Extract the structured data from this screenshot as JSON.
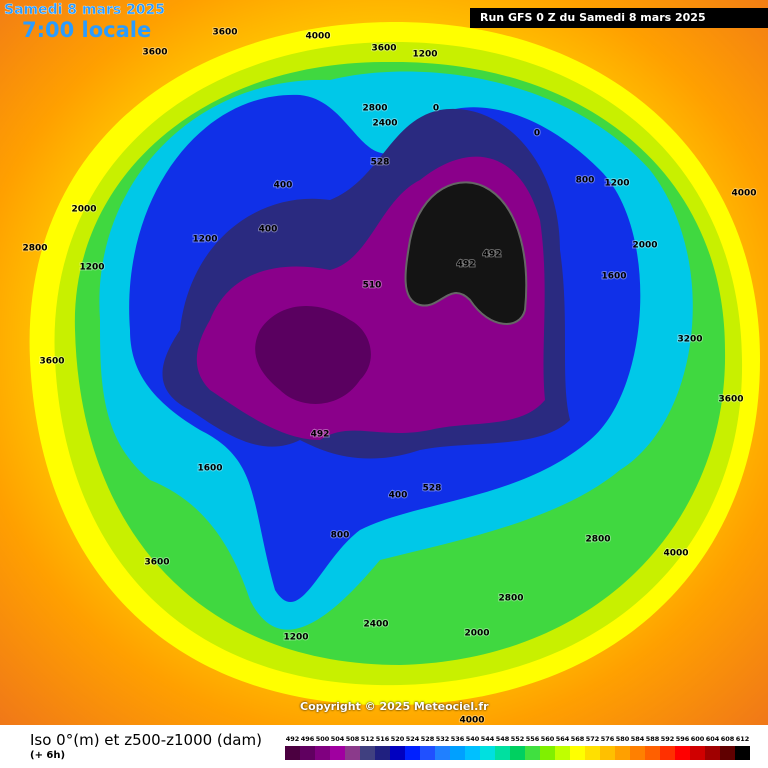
{
  "header": {
    "date": "Samedi 8 mars 2025",
    "time": "7:00 locale",
    "run": "Run GFS 0 Z du Samedi 8 mars 2025"
  },
  "map": {
    "contour_labels": [
      "3600",
      "3600",
      "4000",
      "3600",
      "1200",
      "528",
      "510",
      "492",
      "492",
      "492",
      "0",
      "0",
      "400",
      "2000",
      "1200",
      "2800",
      "2400",
      "4000",
      "1600",
      "3200",
      "800",
      "1200",
      "2400",
      "2800",
      "3600",
      "2000",
      "1600",
      "2800",
      "4000",
      "4000",
      "3600",
      "2800",
      "1200",
      "400",
      "528",
      "3600",
      "2000",
      "1200",
      "400",
      "800"
    ]
  },
  "copyright": "Copyright © 2025 Meteociel.fr",
  "footer": {
    "title": "Iso 0°(m) et z500-z1000 (dam)",
    "lead": "(+ 6h)"
  },
  "legend": {
    "values": [
      492,
      496,
      500,
      504,
      508,
      512,
      516,
      520,
      524,
      528,
      532,
      536,
      540,
      544,
      548,
      552,
      556,
      560,
      564,
      568,
      572,
      576,
      580,
      584,
      588,
      592,
      596,
      600,
      604,
      608,
      612
    ],
    "colors": [
      "#4b0040",
      "#600060",
      "#800080",
      "#a000a0",
      "#8b3a8b",
      "#404080",
      "#202080",
      "#0000c0",
      "#0020ff",
      "#2050ff",
      "#2080ff",
      "#00a0ff",
      "#00c0ff",
      "#00e0e0",
      "#00e0a0",
      "#00d060",
      "#40e040",
      "#80f000",
      "#c0ff00",
      "#ffff00",
      "#ffe000",
      "#ffc000",
      "#ffa000",
      "#ff8000",
      "#ff6000",
      "#ff3000",
      "#ff0000",
      "#d00000",
      "#a00000",
      "#600000",
      "#000000"
    ]
  }
}
